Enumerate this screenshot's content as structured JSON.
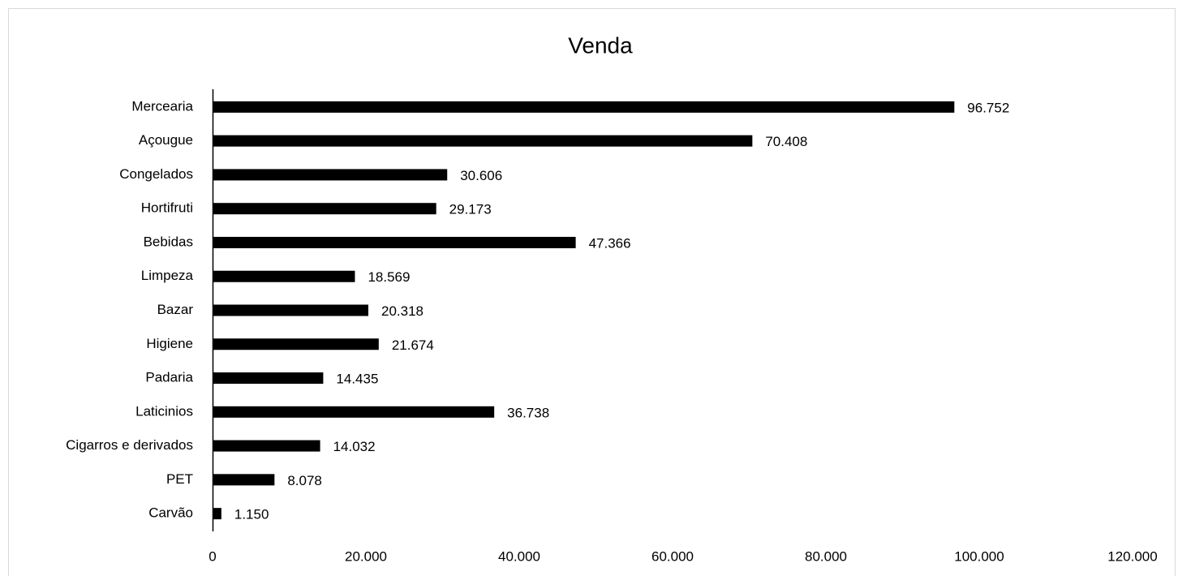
{
  "chart_data": {
    "type": "bar",
    "orientation": "horizontal",
    "title": "Venda",
    "categories": [
      "Mercearia",
      "Açougue",
      "Congelados",
      "Hortifruti",
      "Bebidas",
      "Limpeza",
      "Bazar",
      "Higiene",
      "Padaria",
      "Laticinios",
      "Cigarros e derivados",
      "PET",
      "Carvão"
    ],
    "values": [
      96752,
      70408,
      30606,
      29173,
      47366,
      18569,
      20318,
      21674,
      14435,
      36738,
      14032,
      8078,
      1150
    ],
    "value_labels": [
      "96.752",
      "70.408",
      "30.606",
      "29.173",
      "47.366",
      "18.569",
      "20.318",
      "21.674",
      "14.435",
      "36.738",
      "14.032",
      "8.078",
      "1.150"
    ],
    "color": "#000000",
    "xlim": [
      0,
      120000
    ],
    "xticks": [
      0,
      {
        "value": 20000,
        "label": "20.000"
      },
      {
        "value": 40000,
        "label": "40.000"
      },
      {
        "value": 60000,
        "label": "60.000"
      },
      {
        "value": 80000,
        "label": "80.000"
      },
      {
        "value": 100000,
        "label": "100.000"
      },
      {
        "value": 120000,
        "label": "120.000"
      }
    ],
    "grid": false
  }
}
